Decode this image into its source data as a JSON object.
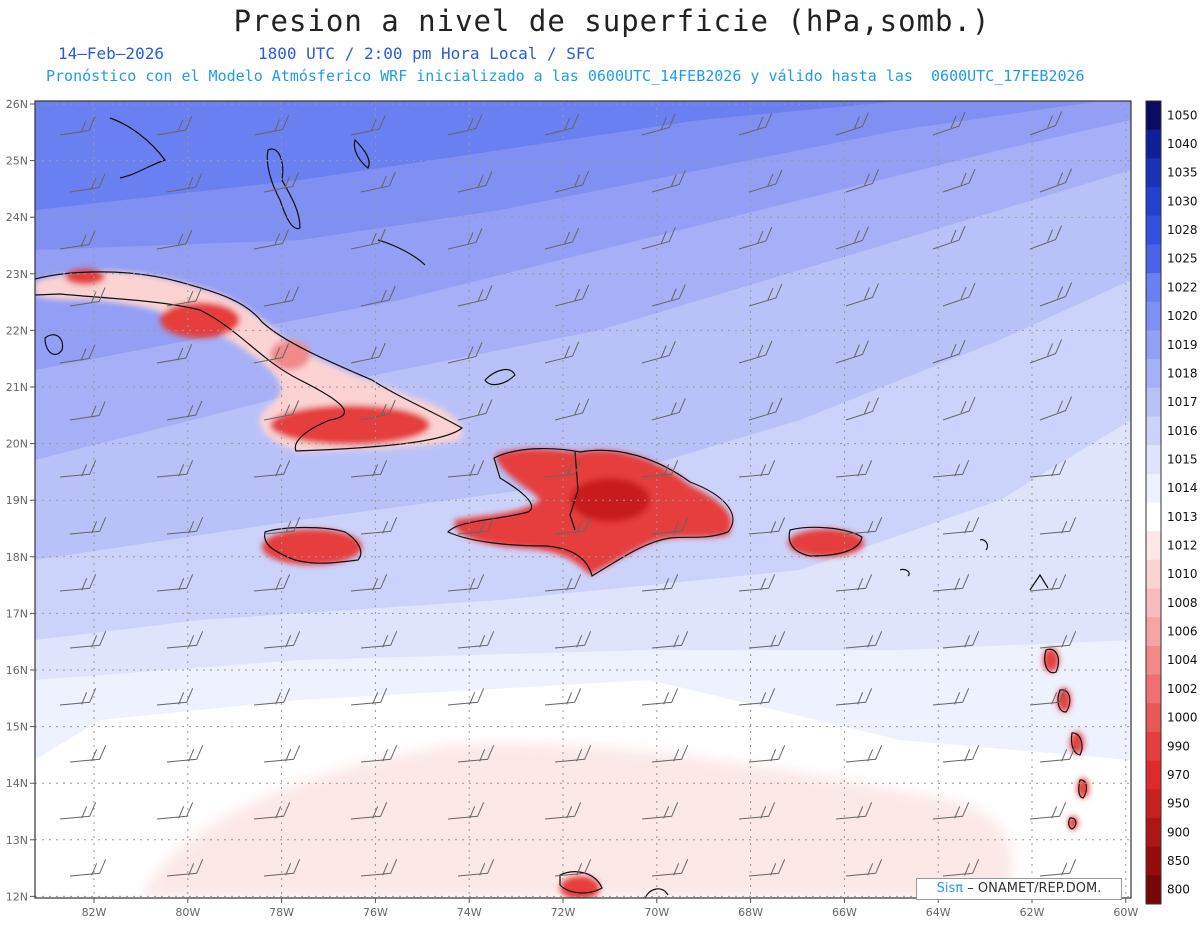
{
  "title": "Presion a nivel de superficie (hPa,somb.)",
  "date": "14–Feb–2026",
  "valid_time": "1800 UTC / 2:00 pm Hora Local / SFC",
  "forecast_info": "Pronóstico con el Modelo Atmósferico WRF inicializado a las 0600UTC_14FEB2026 y válido hasta las  0600UTC_17FEB2026",
  "lat_labels": [
    "26N",
    "25N",
    "24N",
    "23N",
    "22N",
    "21N",
    "20N",
    "19N",
    "18N",
    "17N",
    "16N",
    "15N",
    "14N",
    "13N",
    "12N"
  ],
  "lon_labels": [
    "82W",
    "80W",
    "78W",
    "76W",
    "74W",
    "72W",
    "70W",
    "68W",
    "66W",
    "64W",
    "62W",
    "60W"
  ],
  "colorbar": {
    "levels": [
      "1050",
      "1040",
      "1035",
      "1030",
      "1028",
      "1025",
      "1022",
      "1020",
      "1019",
      "1018",
      "1017",
      "1016",
      "1015",
      "1014",
      "1013",
      "1012",
      "1010",
      "1008",
      "1006",
      "1004",
      "1002",
      "1000",
      "990",
      "970",
      "950",
      "900",
      "850",
      "800"
    ],
    "colors": [
      "#0a0a66",
      "#0f2096",
      "#1a32b8",
      "#2440d0",
      "#3350e0",
      "#4a63ea",
      "#6a7ff0",
      "#7f8ff2",
      "#939ff4",
      "#a6b0f6",
      "#b9c2f8",
      "#ccd3fa",
      "#dfe4fc",
      "#eef1fe",
      "#ffffff",
      "#fde8e8",
      "#fbd3d3",
      "#f9bcbc",
      "#f6a3a3",
      "#f28a8a",
      "#ee7070",
      "#ea5757",
      "#e63e3e",
      "#dd2a2a",
      "#c81f1f",
      "#b01515",
      "#940d0d",
      "#780606"
    ]
  },
  "credit": {
    "sis": "Sisπ",
    "text": "– ONAMET/REP.DOM."
  }
}
